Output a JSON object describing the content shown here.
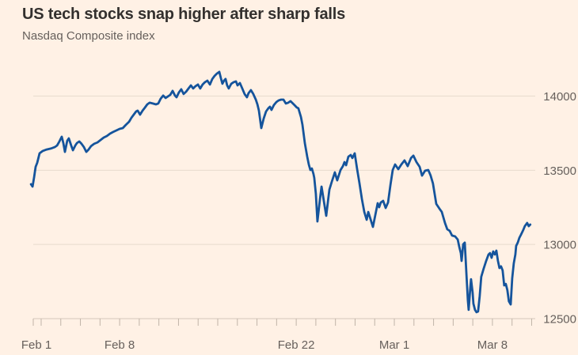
{
  "header": {
    "title": "US tech stocks snap higher after sharp falls",
    "subtitle": "Nasdaq Composite index"
  },
  "colors": {
    "background": "#FFF1E5",
    "title_text": "#33302E",
    "subtitle_text": "#66605C",
    "axis_text": "#66605C",
    "gridline": "#E8DBCE",
    "axis_line": "#D5C8BA",
    "tick": "#C0B4A8",
    "series_line": "#15549C"
  },
  "chart_data": {
    "type": "line",
    "title": "US tech stocks snap higher after sharp falls",
    "subtitle": "Nasdaq Composite index",
    "legend": "none",
    "grid": "horizontal",
    "y_axis": {
      "side": "right",
      "ticks": [
        12500,
        13000,
        13500,
        14000
      ],
      "ylim": [
        12500,
        14200
      ]
    },
    "x_axis": {
      "unit": "trading days from Feb 1 (Feb 15 holiday excluded)",
      "total_days": 26,
      "minor_tick_every_days": 1,
      "labels": [
        {
          "label": "Feb 1",
          "day": 0
        },
        {
          "label": "Feb 8",
          "day": 5
        },
        {
          "label": "Feb 22",
          "day": 14
        },
        {
          "label": "Mar 1",
          "day": 19
        },
        {
          "label": "Mar 8",
          "day": 24
        }
      ]
    },
    "series": [
      {
        "name": "Nasdaq Composite index",
        "color": "#15549C",
        "points": [
          [
            0.48,
            13406
          ],
          [
            0.56,
            13390
          ],
          [
            0.64,
            13454
          ],
          [
            0.72,
            13523
          ],
          [
            0.8,
            13550
          ],
          [
            0.92,
            13614
          ],
          [
            1.08,
            13630
          ],
          [
            1.28,
            13640
          ],
          [
            1.49,
            13646
          ],
          [
            1.69,
            13656
          ],
          [
            1.81,
            13667
          ],
          [
            1.93,
            13694
          ],
          [
            2.05,
            13726
          ],
          [
            2.13,
            13683
          ],
          [
            2.21,
            13624
          ],
          [
            2.33,
            13699
          ],
          [
            2.41,
            13715
          ],
          [
            2.53,
            13667
          ],
          [
            2.62,
            13635
          ],
          [
            2.74,
            13667
          ],
          [
            2.82,
            13683
          ],
          [
            2.94,
            13694
          ],
          [
            3.06,
            13678
          ],
          [
            3.18,
            13656
          ],
          [
            3.3,
            13624
          ],
          [
            3.42,
            13640
          ],
          [
            3.54,
            13662
          ],
          [
            3.7,
            13678
          ],
          [
            3.87,
            13688
          ],
          [
            4.03,
            13704
          ],
          [
            4.19,
            13720
          ],
          [
            4.35,
            13731
          ],
          [
            4.51,
            13747
          ],
          [
            4.67,
            13758
          ],
          [
            4.83,
            13768
          ],
          [
            5.0,
            13779
          ],
          [
            5.16,
            13784
          ],
          [
            5.32,
            13806
          ],
          [
            5.48,
            13827
          ],
          [
            5.6,
            13854
          ],
          [
            5.72,
            13875
          ],
          [
            5.84,
            13896
          ],
          [
            5.92,
            13902
          ],
          [
            6.04,
            13875
          ],
          [
            6.17,
            13902
          ],
          [
            6.29,
            13923
          ],
          [
            6.41,
            13944
          ],
          [
            6.53,
            13955
          ],
          [
            6.69,
            13950
          ],
          [
            6.85,
            13944
          ],
          [
            6.97,
            13950
          ],
          [
            7.09,
            13982
          ],
          [
            7.22,
            14003
          ],
          [
            7.34,
            13987
          ],
          [
            7.46,
            13998
          ],
          [
            7.58,
            14008
          ],
          [
            7.7,
            14035
          ],
          [
            7.82,
            14003
          ],
          [
            7.9,
            13992
          ],
          [
            8.02,
            14024
          ],
          [
            8.14,
            14046
          ],
          [
            8.26,
            14014
          ],
          [
            8.39,
            14030
          ],
          [
            8.51,
            14051
          ],
          [
            8.63,
            14072
          ],
          [
            8.75,
            14051
          ],
          [
            8.87,
            14067
          ],
          [
            8.99,
            14078
          ],
          [
            9.11,
            14051
          ],
          [
            9.23,
            14078
          ],
          [
            9.35,
            14094
          ],
          [
            9.47,
            14104
          ],
          [
            9.6,
            14078
          ],
          [
            9.72,
            14115
          ],
          [
            9.84,
            14136
          ],
          [
            9.96,
            14152
          ],
          [
            10.08,
            14163
          ],
          [
            10.16,
            14120
          ],
          [
            10.24,
            14083
          ],
          [
            10.32,
            14104
          ],
          [
            10.4,
            14115
          ],
          [
            10.48,
            14072
          ],
          [
            10.56,
            14051
          ],
          [
            10.69,
            14083
          ],
          [
            10.81,
            14094
          ],
          [
            10.93,
            14099
          ],
          [
            11.01,
            14072
          ],
          [
            11.13,
            14088
          ],
          [
            11.25,
            14051
          ],
          [
            11.37,
            14014
          ],
          [
            11.49,
            13992
          ],
          [
            11.57,
            14019
          ],
          [
            11.69,
            14040
          ],
          [
            11.81,
            14014
          ],
          [
            11.94,
            13976
          ],
          [
            12.02,
            13944
          ],
          [
            12.1,
            13902
          ],
          [
            12.22,
            13784
          ],
          [
            12.34,
            13848
          ],
          [
            12.46,
            13896
          ],
          [
            12.58,
            13918
          ],
          [
            12.66,
            13928
          ],
          [
            12.74,
            13907
          ],
          [
            12.86,
            13939
          ],
          [
            12.99,
            13960
          ],
          [
            13.11,
            13971
          ],
          [
            13.23,
            13976
          ],
          [
            13.35,
            13976
          ],
          [
            13.47,
            13950
          ],
          [
            13.59,
            13955
          ],
          [
            13.71,
            13966
          ],
          [
            13.83,
            13950
          ],
          [
            13.91,
            13939
          ],
          [
            14.03,
            13923
          ],
          [
            14.11,
            13918
          ],
          [
            14.24,
            13859
          ],
          [
            14.32,
            13806
          ],
          [
            14.44,
            13683
          ],
          [
            14.56,
            13592
          ],
          [
            14.64,
            13539
          ],
          [
            14.72,
            13502
          ],
          [
            14.8,
            13512
          ],
          [
            14.88,
            13475
          ],
          [
            14.92,
            13449
          ],
          [
            15.0,
            13342
          ],
          [
            15.08,
            13155
          ],
          [
            15.21,
            13305
          ],
          [
            15.29,
            13390
          ],
          [
            15.41,
            13289
          ],
          [
            15.53,
            13193
          ],
          [
            15.69,
            13369
          ],
          [
            15.81,
            13422
          ],
          [
            15.97,
            13486
          ],
          [
            16.09,
            13432
          ],
          [
            16.26,
            13502
          ],
          [
            16.38,
            13528
          ],
          [
            16.46,
            13555
          ],
          [
            16.54,
            13534
          ],
          [
            16.66,
            13592
          ],
          [
            16.78,
            13603
          ],
          [
            16.86,
            13582
          ],
          [
            16.98,
            13614
          ],
          [
            17.1,
            13512
          ],
          [
            17.22,
            13416
          ],
          [
            17.35,
            13305
          ],
          [
            17.47,
            13219
          ],
          [
            17.59,
            13166
          ],
          [
            17.67,
            13219
          ],
          [
            17.75,
            13187
          ],
          [
            17.91,
            13118
          ],
          [
            18.03,
            13198
          ],
          [
            18.15,
            13278
          ],
          [
            18.23,
            13251
          ],
          [
            18.31,
            13283
          ],
          [
            18.43,
            13294
          ],
          [
            18.56,
            13246
          ],
          [
            18.68,
            13283
          ],
          [
            18.8,
            13400
          ],
          [
            18.92,
            13502
          ],
          [
            19.04,
            13539
          ],
          [
            19.2,
            13507
          ],
          [
            19.36,
            13539
          ],
          [
            19.52,
            13566
          ],
          [
            19.68,
            13528
          ],
          [
            19.85,
            13582
          ],
          [
            19.97,
            13598
          ],
          [
            20.13,
            13555
          ],
          [
            20.29,
            13523
          ],
          [
            20.41,
            13464
          ],
          [
            20.57,
            13497
          ],
          [
            20.73,
            13502
          ],
          [
            20.85,
            13464
          ],
          [
            20.97,
            13411
          ],
          [
            21.14,
            13273
          ],
          [
            21.3,
            13241
          ],
          [
            21.42,
            13219
          ],
          [
            21.58,
            13145
          ],
          [
            21.7,
            13102
          ],
          [
            21.82,
            13092
          ],
          [
            21.94,
            13060
          ],
          [
            22.1,
            13054
          ],
          [
            22.23,
            13033
          ],
          [
            22.31,
            12985
          ],
          [
            22.39,
            12942
          ],
          [
            22.43,
            12889
          ],
          [
            22.51,
            13001
          ],
          [
            22.59,
            13012
          ],
          [
            22.67,
            12809
          ],
          [
            22.75,
            12623
          ],
          [
            22.79,
            12559
          ],
          [
            22.87,
            12703
          ],
          [
            22.91,
            12766
          ],
          [
            22.99,
            12676
          ],
          [
            23.03,
            12601
          ],
          [
            23.11,
            12559
          ],
          [
            23.19,
            12543
          ],
          [
            23.27,
            12548
          ],
          [
            23.35,
            12649
          ],
          [
            23.43,
            12782
          ],
          [
            23.55,
            12836
          ],
          [
            23.67,
            12884
          ],
          [
            23.8,
            12932
          ],
          [
            23.88,
            12942
          ],
          [
            23.96,
            12910
          ],
          [
            24.04,
            12953
          ],
          [
            24.12,
            12932
          ],
          [
            24.2,
            12958
          ],
          [
            24.28,
            12889
          ],
          [
            24.36,
            12841
          ],
          [
            24.44,
            12852
          ],
          [
            24.52,
            12825
          ],
          [
            24.6,
            12724
          ],
          [
            24.68,
            12734
          ],
          [
            24.76,
            12692
          ],
          [
            24.84,
            12617
          ],
          [
            24.93,
            12596
          ],
          [
            25.01,
            12772
          ],
          [
            25.09,
            12873
          ],
          [
            25.17,
            12932
          ],
          [
            25.21,
            12990
          ],
          [
            25.29,
            13012
          ],
          [
            25.37,
            13044
          ],
          [
            25.45,
            13065
          ],
          [
            25.57,
            13097
          ],
          [
            25.65,
            13123
          ],
          [
            25.77,
            13145
          ],
          [
            25.85,
            13123
          ],
          [
            25.93,
            13134
          ]
        ]
      }
    ]
  }
}
